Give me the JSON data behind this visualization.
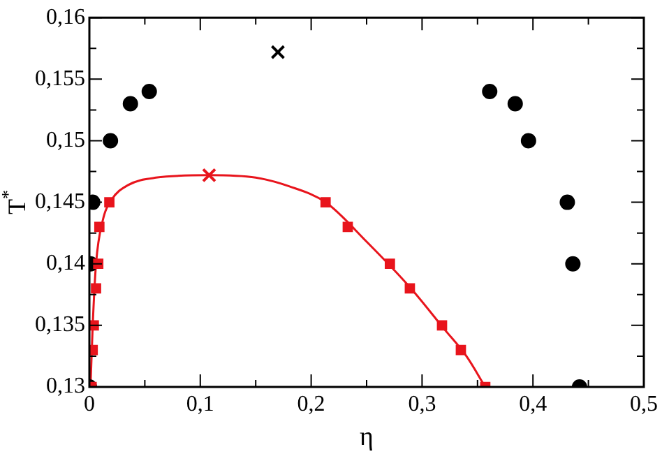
{
  "chart_data": {
    "type": "scatter",
    "xlabel": "η",
    "ylabel": "T$^{*}$",
    "xlim": [
      0,
      0.5
    ],
    "ylim": [
      0.13,
      0.16
    ],
    "xticks": [
      {
        "value": 0,
        "label": "0"
      },
      {
        "value": 0.05,
        "label": null
      },
      {
        "value": 0.1,
        "label": "0,1"
      },
      {
        "value": 0.15,
        "label": null
      },
      {
        "value": 0.2,
        "label": "0,2"
      },
      {
        "value": 0.25,
        "label": null
      },
      {
        "value": 0.3,
        "label": "0,3"
      },
      {
        "value": 0.35,
        "label": null
      },
      {
        "value": 0.4,
        "label": "0,4"
      },
      {
        "value": 0.45,
        "label": null
      },
      {
        "value": 0.5,
        "label": "0,5"
      }
    ],
    "yticks": [
      {
        "value": 0.13,
        "label": "0,13"
      },
      {
        "value": 0.1325,
        "label": null
      },
      {
        "value": 0.135,
        "label": "0,135"
      },
      {
        "value": 0.1375,
        "label": null
      },
      {
        "value": 0.14,
        "label": "0,14"
      },
      {
        "value": 0.1425,
        "label": null
      },
      {
        "value": 0.145,
        "label": "0,145"
      },
      {
        "value": 0.1475,
        "label": null
      },
      {
        "value": 0.15,
        "label": "0,15"
      },
      {
        "value": 0.1525,
        "label": null
      },
      {
        "value": 0.155,
        "label": "0,155"
      },
      {
        "value": 0.1575,
        "label": null
      },
      {
        "value": 0.16,
        "label": "0,16"
      }
    ],
    "grid": false,
    "legend": false,
    "series": [
      {
        "type": "line",
        "color": "#e8141c",
        "marker": "none",
        "line_style": "solid",
        "x": [
          0.001,
          0.003,
          0.006,
          0.012,
          0.02,
          0.035,
          0.06,
          0.108,
          0.15,
          0.18,
          0.213,
          0.25,
          0.29,
          0.32,
          0.34,
          0.357
        ],
        "values": [
          0.13,
          0.135,
          0.14,
          0.1435,
          0.1452,
          0.1464,
          0.147,
          0.1472,
          0.147,
          0.1463,
          0.145,
          0.1418,
          0.138,
          0.1347,
          0.1325,
          0.13
        ]
      },
      {
        "type": "scatter",
        "color": "#000000",
        "marker": "circle",
        "x": [
          0,
          0.001,
          0.003,
          0.019,
          0.037,
          0.054,
          0.361,
          0.384,
          0.396,
          0.431,
          0.436,
          0.442
        ],
        "values": [
          0.13,
          0.14,
          0.145,
          0.15,
          0.153,
          0.154,
          0.154,
          0.153,
          0.15,
          0.145,
          0.14,
          0.13
        ]
      },
      {
        "type": "scatter",
        "color": "#000000",
        "marker": "cross",
        "x": [
          0.17
        ],
        "values": [
          0.1572
        ]
      },
      {
        "type": "scatter",
        "color": "#e8141c",
        "marker": "square",
        "x": [
          0.002,
          0.003,
          0.004,
          0.006,
          0.008,
          0.009,
          0.018,
          0.213,
          0.233,
          0.271,
          0.289,
          0.318,
          0.335,
          0.357
        ],
        "values": [
          0.13,
          0.133,
          0.135,
          0.138,
          0.14,
          0.143,
          0.145,
          0.145,
          0.143,
          0.14,
          0.138,
          0.135,
          0.133,
          0.13
        ]
      },
      {
        "type": "scatter",
        "color": "#e8141c",
        "marker": "cross",
        "x": [
          0.108
        ],
        "values": [
          0.1472
        ]
      }
    ]
  }
}
